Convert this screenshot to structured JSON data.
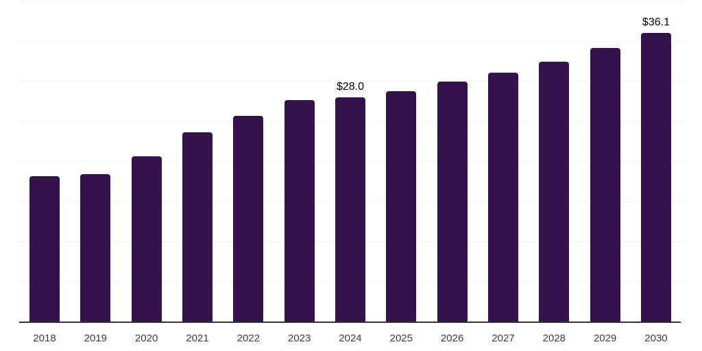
{
  "chart_data": {
    "type": "bar",
    "title": "",
    "xlabel": "",
    "ylabel": "",
    "categories": [
      "2018",
      "2019",
      "2020",
      "2021",
      "2022",
      "2023",
      "2024",
      "2025",
      "2026",
      "2027",
      "2028",
      "2029",
      "2030"
    ],
    "values": [
      18.2,
      18.5,
      20.7,
      23.7,
      25.7,
      27.7,
      28.0,
      28.8,
      30.0,
      31.1,
      32.5,
      34.2,
      36.1
    ],
    "value_labels": [
      {
        "category": "2024",
        "text": "$28.0"
      },
      {
        "category": "2030",
        "text": "$36.1"
      }
    ],
    "ylim": [
      0,
      40
    ],
    "gridline_step": 5,
    "grid": "horizontal",
    "legend_position": "none",
    "y_axis_tick_labels_visible": false,
    "colors": {
      "bar": "#36124C",
      "axis": "#333333",
      "gridline": "#f2f2f2",
      "x_tick_label": "#3d3d3d",
      "value_label": "#000000",
      "background": "#ffffff"
    }
  }
}
